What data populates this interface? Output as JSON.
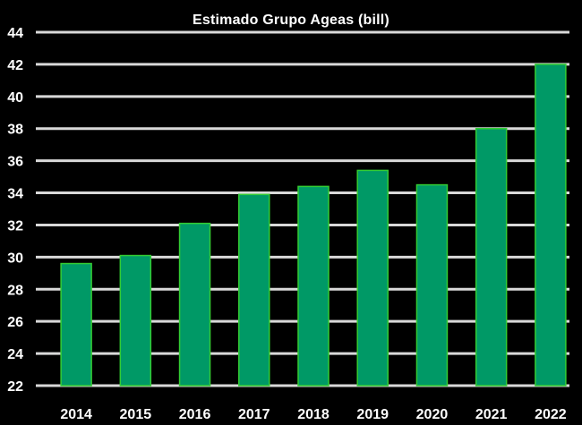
{
  "chart_data": {
    "type": "bar",
    "title": "Estimado Grupo Ageas (bill)",
    "xlabel": "",
    "ylabel": "",
    "categories": [
      "2014",
      "2015",
      "2016",
      "2017",
      "2018",
      "2019",
      "2020",
      "2021",
      "2022"
    ],
    "values": [
      29.6,
      30.1,
      32.1,
      33.9,
      34.4,
      35.4,
      34.5,
      38.0,
      42.0
    ],
    "ylim": [
      22,
      44
    ],
    "yticks": [
      "22",
      "24",
      "26",
      "28",
      "30",
      "32",
      "34",
      "36",
      "38",
      "40",
      "42",
      "44"
    ],
    "grid": true,
    "legend": "none",
    "colors": {
      "bar": "#009966",
      "bar_edge": "#33cc33",
      "grid": "#d9d9d9",
      "text": "#ffffff",
      "background": "#000000"
    }
  }
}
